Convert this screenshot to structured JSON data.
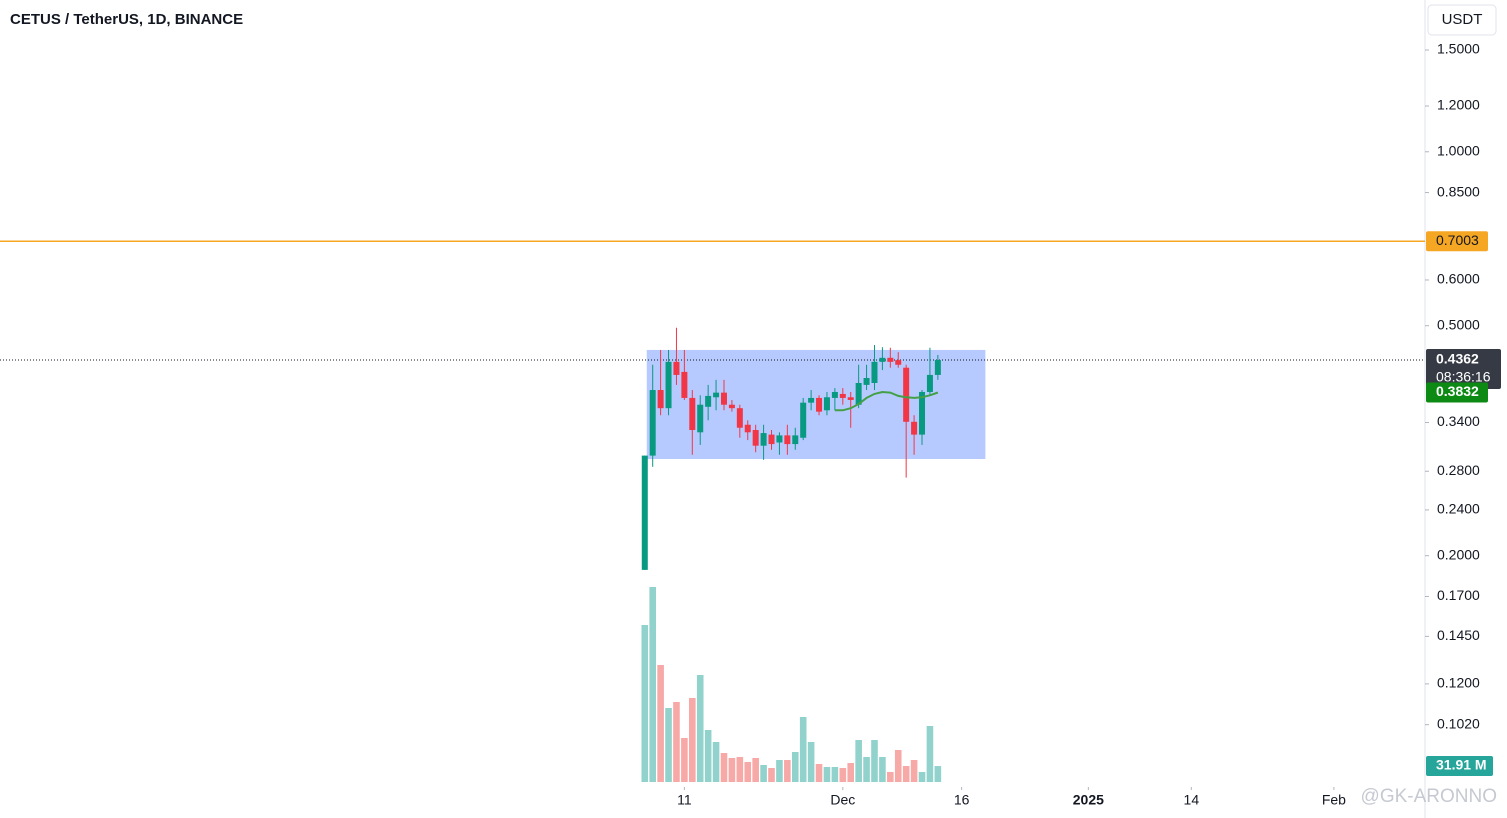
{
  "header": {
    "title": "CETUS / TetherUS, 1D, BINANCE",
    "currency": "USDT",
    "watermark": "@GK-ARONNO"
  },
  "chart_data": {
    "type": "candlestick",
    "log_y": true,
    "up_color": "#089981",
    "down_color": "#f23645",
    "volume_up_color": "#92d2cc",
    "volume_down_color": "#f7a9a7",
    "open": [
      0.189,
      0.298,
      0.387,
      0.36,
      0.433,
      0.416,
      0.375,
      0.327,
      0.362,
      0.376,
      0.383,
      0.365,
      0.36,
      0.337,
      0.33,
      0.31,
      0.324,
      0.314,
      0.323,
      0.312,
      0.32,
      0.368,
      0.375,
      0.357,
      0.375,
      0.381,
      0.376,
      0.365,
      0.395,
      0.398,
      0.433,
      0.44,
      0.436,
      0.423,
      0.341,
      0.324,
      0.384,
      0.411
    ],
    "high": [
      0.298,
      0.428,
      0.454,
      0.454,
      0.496,
      0.454,
      0.387,
      0.379,
      0.395,
      0.403,
      0.403,
      0.372,
      0.365,
      0.343,
      0.337,
      0.337,
      0.33,
      0.327,
      0.337,
      0.333,
      0.375,
      0.387,
      0.379,
      0.384,
      0.39,
      0.39,
      0.384,
      0.428,
      0.428,
      0.463,
      0.459,
      0.458,
      0.45,
      0.428,
      0.35,
      0.387,
      0.458,
      0.445
    ],
    "low": [
      0.189,
      0.285,
      0.35,
      0.35,
      0.395,
      0.372,
      0.299,
      0.311,
      0.343,
      0.357,
      0.357,
      0.355,
      0.32,
      0.317,
      0.302,
      0.293,
      0.305,
      0.299,
      0.299,
      0.305,
      0.317,
      0.357,
      0.35,
      0.35,
      0.357,
      0.365,
      0.333,
      0.36,
      0.387,
      0.387,
      0.419,
      0.423,
      0.423,
      0.273,
      0.299,
      0.311,
      0.379,
      0.403
    ],
    "close": [
      0.298,
      0.387,
      0.36,
      0.433,
      0.411,
      0.375,
      0.33,
      0.365,
      0.378,
      0.383,
      0.365,
      0.36,
      0.333,
      0.327,
      0.31,
      0.326,
      0.312,
      0.323,
      0.312,
      0.323,
      0.368,
      0.375,
      0.355,
      0.376,
      0.384,
      0.375,
      0.372,
      0.398,
      0.406,
      0.433,
      0.44,
      0.433,
      0.428,
      0.341,
      0.324,
      0.384,
      0.411,
      0.4362
    ],
    "volume": [
      314,
      390,
      234,
      148,
      160,
      88,
      168,
      214,
      104,
      80,
      58,
      48,
      50,
      40,
      48,
      34,
      28,
      44,
      44,
      60,
      130,
      80,
      36,
      30,
      30,
      28,
      38,
      84,
      50,
      84,
      50,
      20,
      64,
      32,
      44,
      20,
      112,
      31.91
    ],
    "volume_last_label": "31.91 M",
    "countdown": "08:36:16",
    "ma": {
      "color": "#43a047",
      "values": [
        null,
        null,
        null,
        null,
        null,
        null,
        null,
        null,
        null,
        null,
        null,
        null,
        null,
        null,
        null,
        null,
        null,
        null,
        null,
        null,
        null,
        null,
        null,
        null,
        0.357,
        0.357,
        0.36,
        0.366,
        0.375,
        0.381,
        0.384,
        0.383,
        0.378,
        0.376,
        0.375,
        0.376,
        0.379,
        0.3832
      ]
    },
    "hline": {
      "value": 0.7003,
      "color": "#f5a623"
    },
    "rect": {
      "x": [
        0.25,
        43
      ],
      "y": [
        0.294,
        0.454
      ],
      "color": "#b3c7ff"
    },
    "ylim": [
      0.0802,
      1.831
    ],
    "yticks": [
      {
        "value": 1.5,
        "label": "1.5000"
      },
      {
        "value": 1.2,
        "label": "1.2000"
      },
      {
        "value": 1.0,
        "label": "1.0000"
      },
      {
        "value": 0.85,
        "label": "0.8500"
      },
      {
        "value": 0.6,
        "label": "0.6000"
      },
      {
        "value": 0.5,
        "label": "0.5000"
      },
      {
        "value": 0.34,
        "label": "0.3400"
      },
      {
        "value": 0.28,
        "label": "0.2800"
      },
      {
        "value": 0.24,
        "label": "0.2400"
      },
      {
        "value": 0.2,
        "label": "0.2000"
      },
      {
        "value": 0.17,
        "label": "0.1700"
      },
      {
        "value": 0.145,
        "label": "0.1450"
      },
      {
        "value": 0.12,
        "label": "0.1200"
      },
      {
        "value": 0.102,
        "label": "0.1020"
      }
    ],
    "xlim": [
      -81.4,
      98.5
    ],
    "xticks": [
      {
        "value": 5,
        "label": "11"
      },
      {
        "value": 25,
        "label": "Dec"
      },
      {
        "value": 40,
        "label": "16"
      },
      {
        "value": 56,
        "label": "2025"
      },
      {
        "value": 69,
        "label": "14"
      },
      {
        "value": 87,
        "label": "Feb"
      }
    ]
  }
}
